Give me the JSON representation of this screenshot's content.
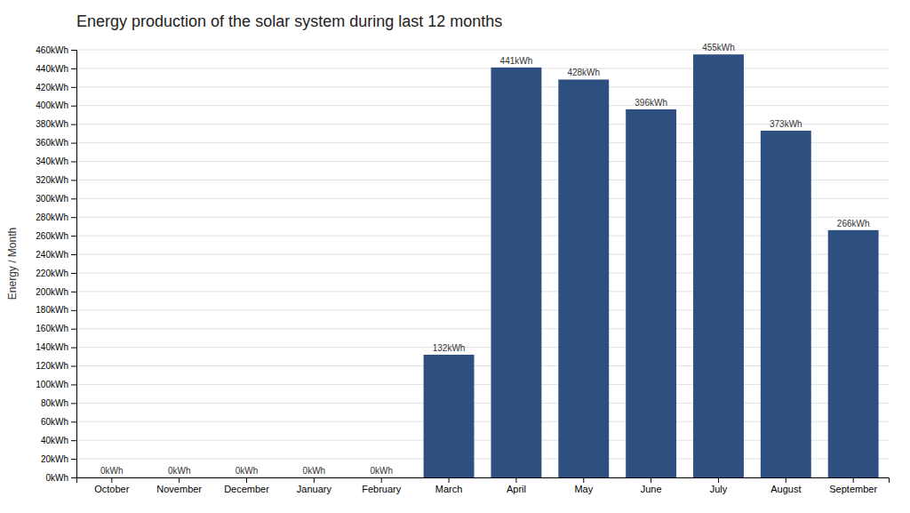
{
  "chart_data": {
    "type": "bar",
    "title": "Energy production of the solar system during last 12 months",
    "ylabel": "Energy / Month",
    "categories": [
      "October",
      "November",
      "December",
      "January",
      "February",
      "March",
      "April",
      "May",
      "June",
      "July",
      "August",
      "September"
    ],
    "values": [
      0,
      0,
      0,
      0,
      0,
      132,
      441,
      428,
      396,
      455,
      373,
      266
    ],
    "value_labels": [
      "0kWh",
      "0kWh",
      "0kWh",
      "0kWh",
      "0kWh",
      "132kWh",
      "441kWh",
      "428kWh",
      "396kWh",
      "455kWh",
      "373kWh",
      "266kWh"
    ],
    "data_labels": true,
    "color": "#2E5080",
    "ylim": [
      0,
      460
    ],
    "yticks": [
      {
        "value": 0,
        "label": "0kWh"
      },
      {
        "value": 20,
        "label": "20kWh"
      },
      {
        "value": 40,
        "label": "40kWh"
      },
      {
        "value": 60,
        "label": "60kWh"
      },
      {
        "value": 80,
        "label": "80kWh"
      },
      {
        "value": 100,
        "label": "100kWh"
      },
      {
        "value": 120,
        "label": "120kWh"
      },
      {
        "value": 140,
        "label": "140kWh"
      },
      {
        "value": 160,
        "label": "160kWh"
      },
      {
        "value": 180,
        "label": "180kWh"
      },
      {
        "value": 200,
        "label": "200kWh"
      },
      {
        "value": 220,
        "label": "220kWh"
      },
      {
        "value": 240,
        "label": "240kWh"
      },
      {
        "value": 260,
        "label": "260kWh"
      },
      {
        "value": 280,
        "label": "280kWh"
      },
      {
        "value": 300,
        "label": "300kWh"
      },
      {
        "value": 320,
        "label": "320kWh"
      },
      {
        "value": 340,
        "label": "340kWh"
      },
      {
        "value": 360,
        "label": "360kWh"
      },
      {
        "value": 380,
        "label": "380kWh"
      },
      {
        "value": 400,
        "label": "400kWh"
      },
      {
        "value": 420,
        "label": "420kWh"
      },
      {
        "value": 440,
        "label": "440kWh"
      },
      {
        "value": 460,
        "label": "460kWh"
      }
    ],
    "grid": true
  }
}
